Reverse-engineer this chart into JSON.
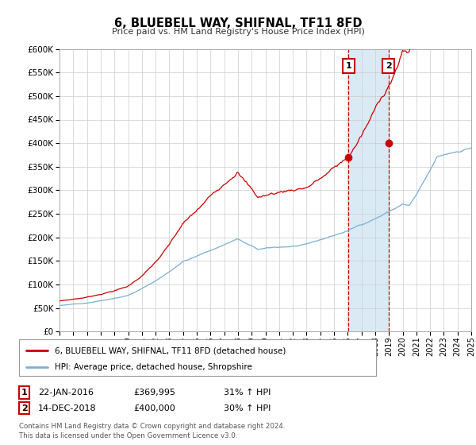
{
  "title": "6, BLUEBELL WAY, SHIFNAL, TF11 8FD",
  "subtitle": "Price paid vs. HM Land Registry's House Price Index (HPI)",
  "legend_line1": "6, BLUEBELL WAY, SHIFNAL, TF11 8FD (detached house)",
  "legend_line2": "HPI: Average price, detached house, Shropshire",
  "annotation_footnote": "Contains HM Land Registry data © Crown copyright and database right 2024.\nThis data is licensed under the Open Government Licence v3.0.",
  "sale1_date": "22-JAN-2016",
  "sale1_price": "£369,995",
  "sale1_hpi": "31% ↑ HPI",
  "sale2_date": "14-DEC-2018",
  "sale2_price": "£400,000",
  "sale2_hpi": "30% ↑ HPI",
  "sale1_year": 2016.06,
  "sale2_year": 2018.96,
  "sale1_value": 369995,
  "sale2_value": 400000,
  "ylim": [
    0,
    600000
  ],
  "xlim_start": 1995,
  "xlim_end": 2025,
  "red_color": "#cc0000",
  "blue_color": "#7bafd4",
  "bg_color": "#ffffff",
  "grid_color": "#cccccc",
  "shade_color": "#daeaf5"
}
